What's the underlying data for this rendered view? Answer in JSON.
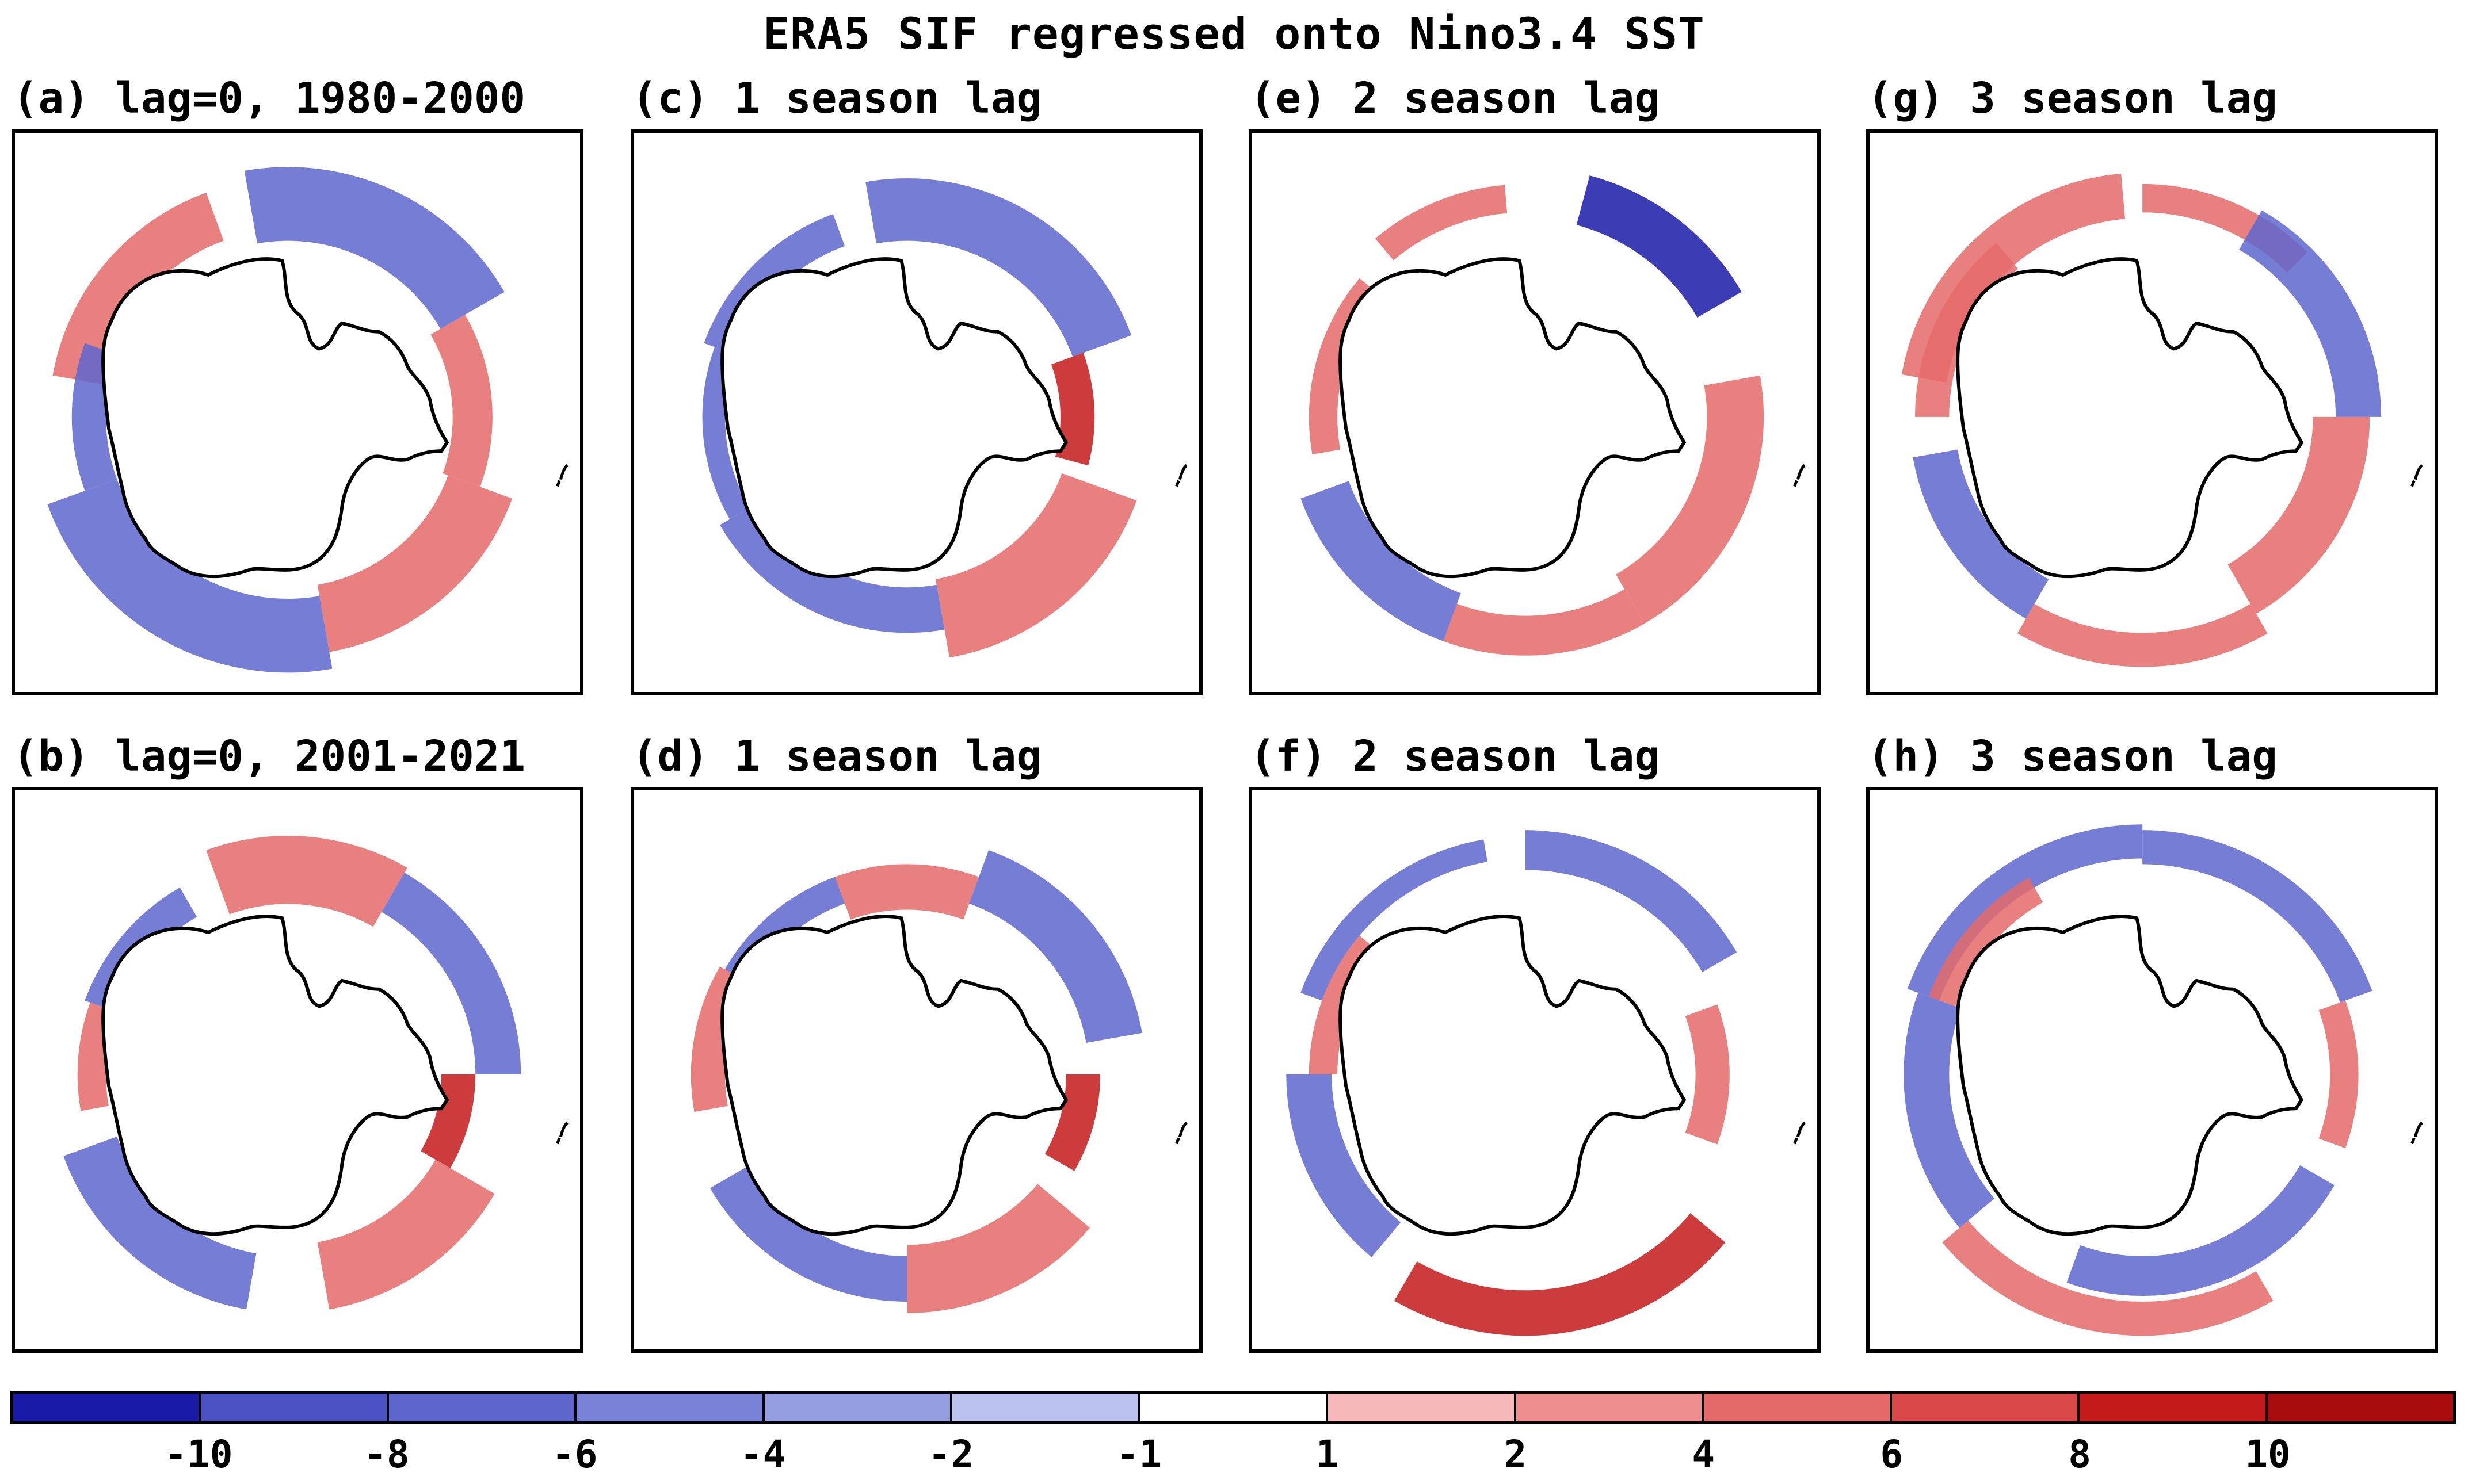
{
  "title": "ERA5 SIF regressed onto Nino3.4 SST",
  "panels": [
    {
      "id": "a",
      "label": "(a) lag=0, 1980-2000"
    },
    {
      "id": "c",
      "label": "(c) 1 season lag"
    },
    {
      "id": "e",
      "label": "(e) 2 season lag"
    },
    {
      "id": "g",
      "label": "(g) 3 season lag"
    },
    {
      "id": "b",
      "label": "(b) lag=0, 2001-2021"
    },
    {
      "id": "d",
      "label": "(d) 1 season lag"
    },
    {
      "id": "f",
      "label": "(f) 2 season lag"
    },
    {
      "id": "h",
      "label": "(h) 3 season lag"
    }
  ],
  "colorbar": {
    "ticks": [
      "-10",
      "-8",
      "-6",
      "-4",
      "-2",
      "-1",
      "1",
      "2",
      "4",
      "6",
      "8",
      "10"
    ],
    "colors": [
      "#1a1aa8",
      "#4a52c4",
      "#5e66cc",
      "#7a82d8",
      "#969ee2",
      "#bcc2f0",
      "#ffffff",
      "#f6b8b8",
      "#ee8e8e",
      "#e46a6a",
      "#d84848",
      "#c41a1a",
      "#a80c0c"
    ]
  },
  "colors": {
    "negative": "#5e66cc",
    "positive": "#e46a6a",
    "strong_negative": "#1a1aa8",
    "strong_positive": "#c41a1a"
  }
}
